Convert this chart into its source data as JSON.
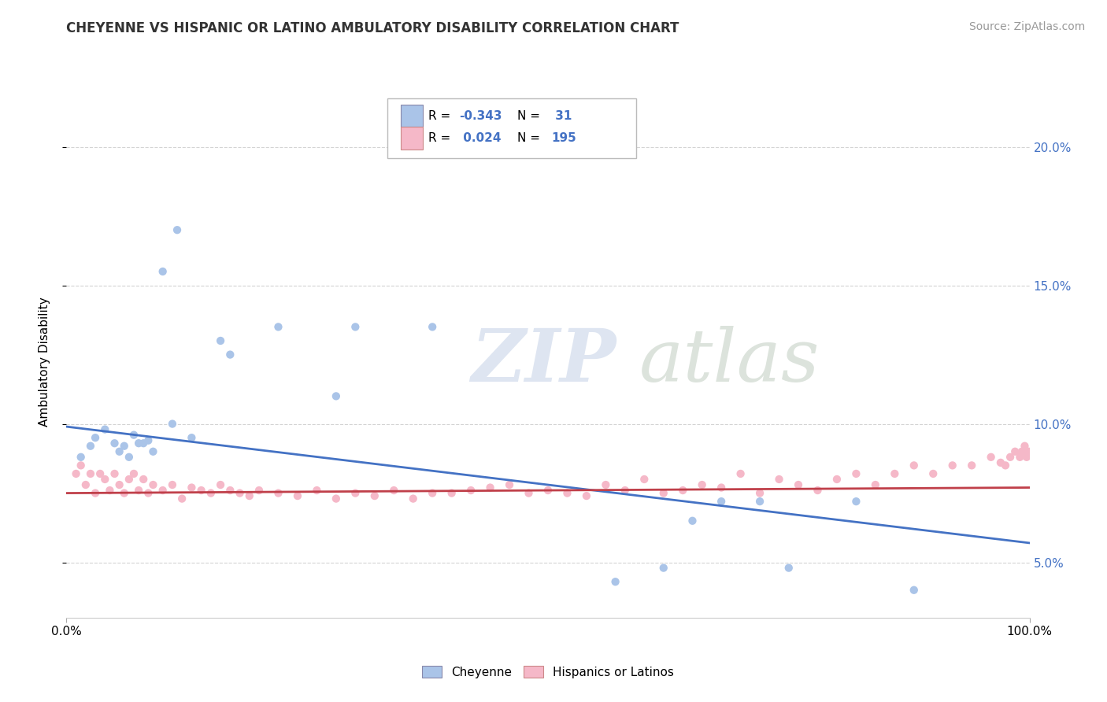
{
  "title": "CHEYENNE VS HISPANIC OR LATINO AMBULATORY DISABILITY CORRELATION CHART",
  "source": "Source: ZipAtlas.com",
  "ylabel": "Ambulatory Disability",
  "yticks_right": [
    "5.0%",
    "10.0%",
    "15.0%",
    "20.0%"
  ],
  "yticks_right_vals": [
    0.05,
    0.1,
    0.15,
    0.2
  ],
  "xlim": [
    0.0,
    1.0
  ],
  "ylim": [
    0.03,
    0.215
  ],
  "cheyenne_color": "#aac4e8",
  "cheyenne_line_color": "#4472c4",
  "hispanic_color": "#f5b8c8",
  "hispanic_line_color": "#c0404a",
  "background_color": "#ffffff",
  "grid_color": "#c8c8c8",
  "legend_R1": "-0.343",
  "legend_N1": "31",
  "legend_R2": "0.024",
  "legend_N2": "195",
  "cheyenne_x": [
    0.015,
    0.025,
    0.03,
    0.04,
    0.05,
    0.055,
    0.06,
    0.065,
    0.07,
    0.075,
    0.08,
    0.085,
    0.09,
    0.1,
    0.11,
    0.115,
    0.13,
    0.16,
    0.17,
    0.22,
    0.28,
    0.3,
    0.38,
    0.57,
    0.62,
    0.65,
    0.68,
    0.72,
    0.75,
    0.82,
    0.88
  ],
  "cheyenne_y": [
    0.088,
    0.092,
    0.095,
    0.098,
    0.093,
    0.09,
    0.092,
    0.088,
    0.096,
    0.093,
    0.093,
    0.094,
    0.09,
    0.155,
    0.1,
    0.17,
    0.095,
    0.13,
    0.125,
    0.135,
    0.11,
    0.135,
    0.135,
    0.043,
    0.048,
    0.065,
    0.072,
    0.072,
    0.048,
    0.072,
    0.04
  ],
  "hispanic_x": [
    0.01,
    0.015,
    0.02,
    0.025,
    0.03,
    0.035,
    0.04,
    0.045,
    0.05,
    0.055,
    0.06,
    0.065,
    0.07,
    0.075,
    0.08,
    0.085,
    0.09,
    0.1,
    0.11,
    0.12,
    0.13,
    0.14,
    0.15,
    0.16,
    0.17,
    0.18,
    0.19,
    0.2,
    0.22,
    0.24,
    0.26,
    0.28,
    0.3,
    0.32,
    0.34,
    0.36,
    0.38,
    0.4,
    0.42,
    0.44,
    0.46,
    0.48,
    0.5,
    0.52,
    0.54,
    0.56,
    0.58,
    0.6,
    0.62,
    0.64,
    0.66,
    0.68,
    0.7,
    0.72,
    0.74,
    0.76,
    0.78,
    0.8,
    0.82,
    0.84,
    0.86,
    0.88,
    0.9,
    0.92,
    0.94,
    0.96,
    0.97,
    0.975,
    0.98,
    0.985,
    0.99,
    0.992,
    0.995,
    0.997,
    0.999
  ],
  "hispanic_y": [
    0.082,
    0.085,
    0.078,
    0.082,
    0.075,
    0.082,
    0.08,
    0.076,
    0.082,
    0.078,
    0.075,
    0.08,
    0.082,
    0.076,
    0.08,
    0.075,
    0.078,
    0.076,
    0.078,
    0.073,
    0.077,
    0.076,
    0.075,
    0.078,
    0.076,
    0.075,
    0.074,
    0.076,
    0.075,
    0.074,
    0.076,
    0.073,
    0.075,
    0.074,
    0.076,
    0.073,
    0.075,
    0.075,
    0.076,
    0.077,
    0.078,
    0.075,
    0.076,
    0.075,
    0.074,
    0.078,
    0.076,
    0.08,
    0.075,
    0.076,
    0.078,
    0.077,
    0.082,
    0.075,
    0.08,
    0.078,
    0.076,
    0.08,
    0.082,
    0.078,
    0.082,
    0.085,
    0.082,
    0.085,
    0.085,
    0.088,
    0.086,
    0.085,
    0.088,
    0.09,
    0.088,
    0.09,
    0.092,
    0.088,
    0.09
  ],
  "cheyenne_trend_y0": 0.099,
  "cheyenne_trend_y1": 0.057,
  "hispanic_trend_y0": 0.075,
  "hispanic_trend_y1": 0.077,
  "title_fontsize": 12,
  "source_fontsize": 10,
  "tick_fontsize": 11,
  "label_fontsize": 11
}
